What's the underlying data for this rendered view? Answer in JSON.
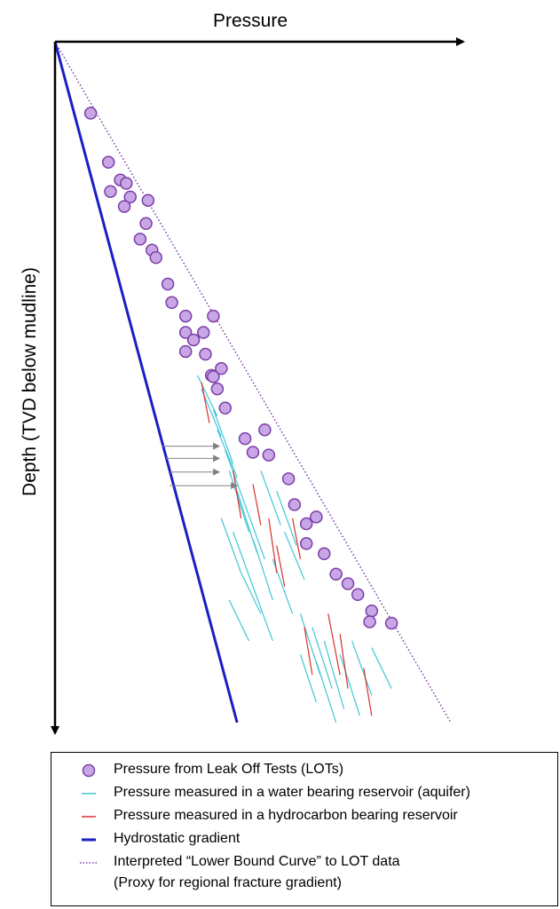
{
  "x_axis_label": "Pressure",
  "y_axis_label": "Depth (TVD below mudline)",
  "colors": {
    "lot_fill": "#c9a6e6",
    "lot_stroke": "#7a3ea8",
    "aquifer": "#3fc6d8",
    "hydrocarbon": "#d6302b",
    "hydrostatic": "#1a1fc4",
    "lower_bound": "#7a3ea8",
    "arrow": "#808080",
    "axis": "#000000"
  },
  "legend": {
    "items": [
      {
        "symbol": "circle",
        "text": "Pressure from Leak Off Tests (LOTs)"
      },
      {
        "symbol": "cyan-line",
        "text": "Pressure measured in a water bearing reservoir (aquifer)"
      },
      {
        "symbol": "red-line",
        "text": "Pressure measured in a hydrocarbon bearing reservoir"
      },
      {
        "symbol": "blue-line",
        "text": "Hydrostatic gradient"
      },
      {
        "symbol": "dotted-line",
        "text": "Interpreted “Lower Bound Curve” to LOT data"
      },
      {
        "symbol": "none",
        "text": "(Proxy for regional fracture gradient)"
      }
    ]
  },
  "chart_data": {
    "type": "scatter",
    "x_title": "Pressure",
    "y_title": "Depth (TVD below mudline)",
    "note": "Schematic: no numeric tick labels; values in relative units (x: 0-1 pressure, y: 0-1 depth)",
    "lot_points": [
      [
        0.09,
        0.105
      ],
      [
        0.135,
        0.177
      ],
      [
        0.165,
        0.203
      ],
      [
        0.18,
        0.208
      ],
      [
        0.14,
        0.22
      ],
      [
        0.19,
        0.228
      ],
      [
        0.235,
        0.233
      ],
      [
        0.175,
        0.242
      ],
      [
        0.23,
        0.267
      ],
      [
        0.215,
        0.29
      ],
      [
        0.245,
        0.306
      ],
      [
        0.255,
        0.317
      ],
      [
        0.285,
        0.356
      ],
      [
        0.295,
        0.383
      ],
      [
        0.33,
        0.403
      ],
      [
        0.4,
        0.403
      ],
      [
        0.33,
        0.427
      ],
      [
        0.35,
        0.438
      ],
      [
        0.375,
        0.427
      ],
      [
        0.33,
        0.455
      ],
      [
        0.38,
        0.459
      ],
      [
        0.42,
        0.48
      ],
      [
        0.395,
        0.49
      ],
      [
        0.4,
        0.492
      ],
      [
        0.41,
        0.51
      ],
      [
        0.43,
        0.538
      ],
      [
        0.53,
        0.57
      ],
      [
        0.48,
        0.583
      ],
      [
        0.5,
        0.603
      ],
      [
        0.54,
        0.607
      ],
      [
        0.59,
        0.642
      ],
      [
        0.605,
        0.68
      ],
      [
        0.635,
        0.708
      ],
      [
        0.66,
        0.698
      ],
      [
        0.635,
        0.737
      ],
      [
        0.68,
        0.752
      ],
      [
        0.71,
        0.782
      ],
      [
        0.74,
        0.796
      ],
      [
        0.765,
        0.812
      ],
      [
        0.8,
        0.836
      ],
      [
        0.795,
        0.852
      ],
      [
        0.85,
        0.854
      ]
    ],
    "aquifer_segments": [
      [
        0.36,
        0.49,
        0.41,
        0.55
      ],
      [
        0.37,
        0.51,
        0.42,
        0.58
      ],
      [
        0.4,
        0.54,
        0.45,
        0.62
      ],
      [
        0.41,
        0.57,
        0.46,
        0.64
      ],
      [
        0.43,
        0.6,
        0.48,
        0.68
      ],
      [
        0.44,
        0.63,
        0.49,
        0.72
      ],
      [
        0.46,
        0.66,
        0.51,
        0.75
      ],
      [
        0.42,
        0.7,
        0.47,
        0.78
      ],
      [
        0.45,
        0.72,
        0.5,
        0.8
      ],
      [
        0.48,
        0.68,
        0.53,
        0.76
      ],
      [
        0.5,
        0.73,
        0.55,
        0.82
      ],
      [
        0.52,
        0.63,
        0.57,
        0.71
      ],
      [
        0.47,
        0.78,
        0.52,
        0.84
      ],
      [
        0.55,
        0.76,
        0.6,
        0.84
      ],
      [
        0.44,
        0.82,
        0.49,
        0.88
      ],
      [
        0.5,
        0.8,
        0.55,
        0.88
      ],
      [
        0.62,
        0.84,
        0.67,
        0.93
      ],
      [
        0.65,
        0.86,
        0.7,
        0.95
      ],
      [
        0.68,
        0.88,
        0.73,
        0.98
      ],
      [
        0.66,
        0.91,
        0.71,
        1.0
      ],
      [
        0.72,
        0.9,
        0.77,
        0.99
      ],
      [
        0.62,
        0.9,
        0.66,
        0.97
      ],
      [
        0.75,
        0.88,
        0.8,
        0.96
      ],
      [
        0.8,
        0.89,
        0.85,
        0.95
      ],
      [
        0.56,
        0.66,
        0.61,
        0.74
      ],
      [
        0.58,
        0.72,
        0.63,
        0.79
      ]
    ],
    "hydrocarbon_segments": [
      [
        0.37,
        0.5,
        0.39,
        0.56
      ],
      [
        0.45,
        0.63,
        0.47,
        0.7
      ],
      [
        0.5,
        0.65,
        0.52,
        0.71
      ],
      [
        0.54,
        0.7,
        0.56,
        0.78
      ],
      [
        0.56,
        0.74,
        0.58,
        0.8
      ],
      [
        0.63,
        0.86,
        0.65,
        0.93
      ],
      [
        0.69,
        0.84,
        0.72,
        0.93
      ],
      [
        0.72,
        0.87,
        0.74,
        0.95
      ],
      [
        0.78,
        0.92,
        0.8,
        0.99
      ],
      [
        0.6,
        0.7,
        0.62,
        0.76
      ]
    ],
    "hydrostatic": {
      "x": [
        0.0,
        0.46
      ],
      "y": [
        0.0,
        1.0
      ]
    },
    "lower_bound": {
      "x": [
        0.0,
        1.0
      ],
      "y": [
        0.0,
        1.0
      ]
    },
    "arrows": [
      {
        "y": 0.594,
        "x_from": 0.27,
        "x_to": 0.415
      },
      {
        "y": 0.612,
        "x_from": 0.28,
        "x_to": 0.415
      },
      {
        "y": 0.632,
        "x_from": 0.29,
        "x_to": 0.415
      },
      {
        "y": 0.652,
        "x_from": 0.29,
        "x_to": 0.46
      }
    ]
  }
}
